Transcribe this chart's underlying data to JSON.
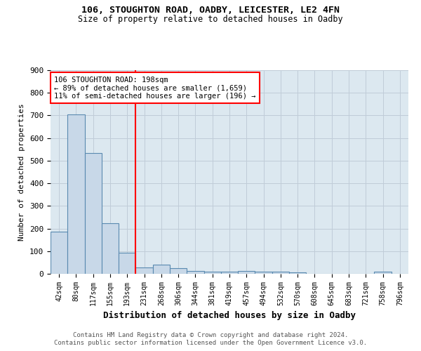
{
  "title1": "106, STOUGHTON ROAD, OADBY, LEICESTER, LE2 4FN",
  "title2": "Size of property relative to detached houses in Oadby",
  "xlabel": "Distribution of detached houses by size in Oadby",
  "ylabel": "Number of detached properties",
  "categories": [
    "42sqm",
    "80sqm",
    "117sqm",
    "155sqm",
    "193sqm",
    "231sqm",
    "268sqm",
    "306sqm",
    "344sqm",
    "381sqm",
    "419sqm",
    "457sqm",
    "494sqm",
    "532sqm",
    "570sqm",
    "608sqm",
    "645sqm",
    "683sqm",
    "721sqm",
    "758sqm",
    "796sqm"
  ],
  "values": [
    185,
    703,
    535,
    222,
    93,
    28,
    40,
    25,
    12,
    10,
    10,
    11,
    9,
    9,
    5,
    0,
    0,
    0,
    0,
    8,
    0
  ],
  "bar_color": "#c8d8e8",
  "bar_edge_color": "#5a8ab0",
  "red_line_x": 4.5,
  "annotation_line1": "106 STOUGHTON ROAD: 198sqm",
  "annotation_line2": "← 89% of detached houses are smaller (1,659)",
  "annotation_line3": "11% of semi-detached houses are larger (196) →",
  "footer1": "Contains HM Land Registry data © Crown copyright and database right 2024.",
  "footer2": "Contains public sector information licensed under the Open Government Licence v3.0.",
  "ylim": [
    0,
    900
  ],
  "yticks": [
    0,
    100,
    200,
    300,
    400,
    500,
    600,
    700,
    800,
    900
  ],
  "bg_color": "#ffffff",
  "grid_color": "#c0ccd8",
  "ax_bg_color": "#dce8f0"
}
